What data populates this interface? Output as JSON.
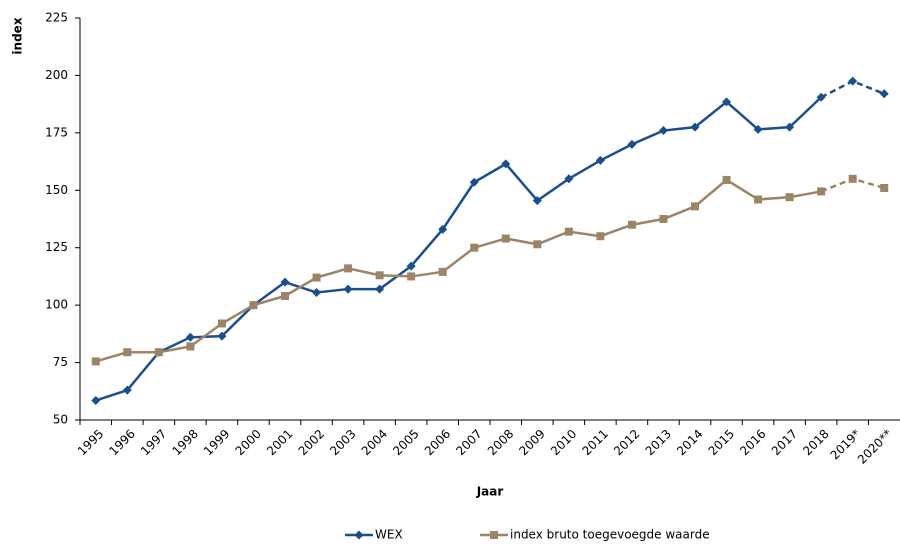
{
  "chart_data": {
    "type": "line",
    "y_label": "index",
    "x_label": "Jaar",
    "categories": [
      "1995",
      "1996",
      "1997",
      "1998",
      "1999",
      "2000",
      "2001",
      "2002",
      "2003",
      "2004",
      "2005",
      "2006",
      "2007",
      "2008",
      "2009",
      "2010",
      "2011",
      "2012",
      "2013",
      "2014",
      "2015",
      "2016",
      "2017",
      "2018",
      "2019*",
      "2020**"
    ],
    "series": [
      {
        "name": "WEX",
        "color": "#1b4f8a",
        "marker": "diamond",
        "values": [
          58.5,
          63,
          79.5,
          86,
          86.5,
          100,
          110,
          105.5,
          107,
          107,
          117,
          133,
          153.5,
          161.5,
          145.5,
          155,
          163,
          170,
          176,
          177.5,
          188.5,
          176.5,
          177.5,
          190.5,
          197.5,
          192
        ]
      },
      {
        "name": "index bruto toegevoegde waarde",
        "color": "#9c8468",
        "marker": "square",
        "values": [
          75.5,
          79.5,
          79.5,
          82,
          92,
          100,
          104,
          112,
          116,
          113,
          112.5,
          114.5,
          125,
          129,
          126.5,
          132,
          130,
          135,
          137.5,
          143,
          154.5,
          146,
          147,
          149.5,
          155,
          151
        ]
      }
    ],
    "dashed_from": 23,
    "ylim": [
      50,
      225
    ],
    "yticks": [
      50,
      75,
      100,
      125,
      150,
      175,
      200,
      225
    ],
    "grid": false,
    "legend": "bottom"
  }
}
